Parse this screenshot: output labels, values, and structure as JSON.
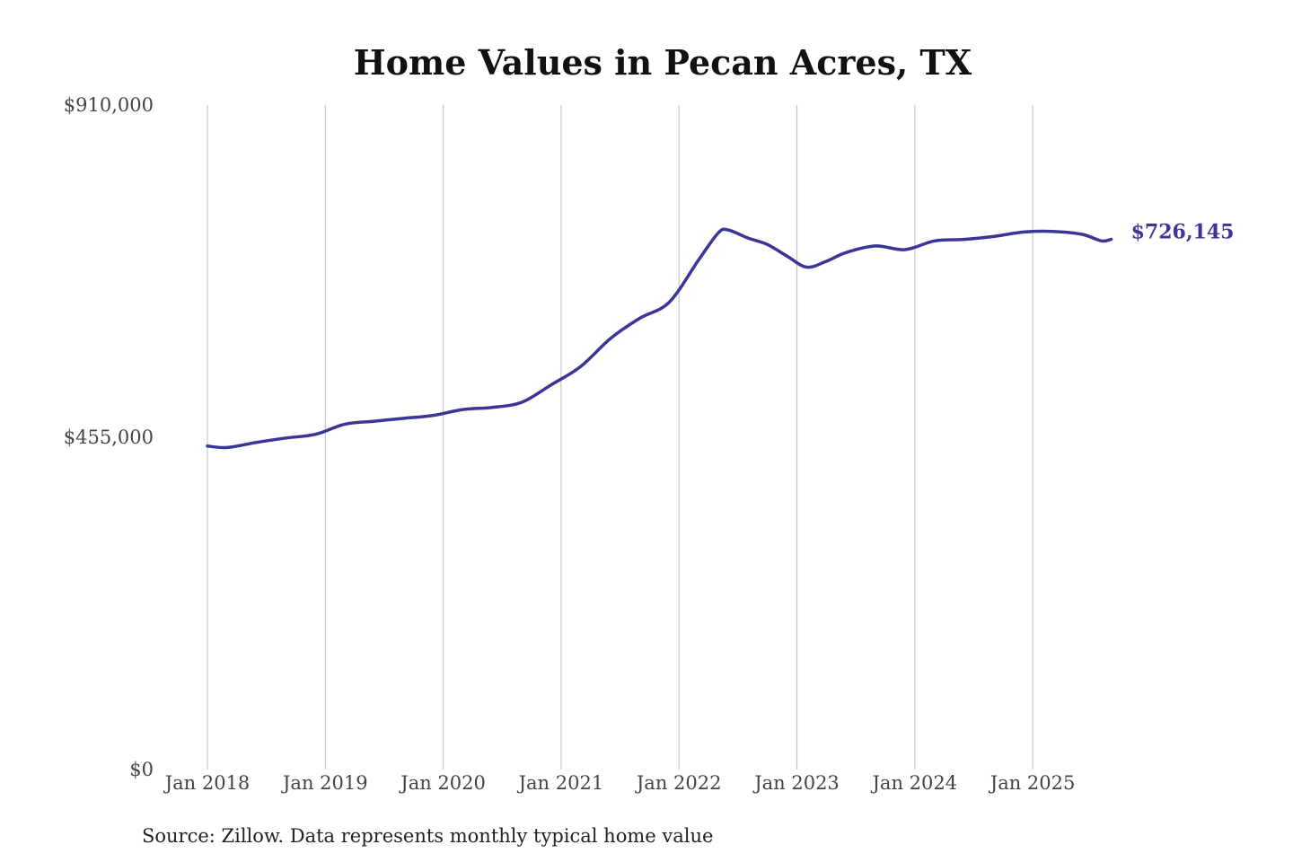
{
  "chart_data": {
    "type": "line",
    "title": "Home Values in Pecan Acres, TX",
    "source_note": "Source: Zillow. Data represents monthly typical home value",
    "xlabel": "",
    "ylabel": "",
    "ylim": [
      0,
      910000
    ],
    "y_ticks": [
      {
        "value": 0,
        "label": "$0"
      },
      {
        "value": 455000,
        "label": "$455,000"
      },
      {
        "value": 910000,
        "label": "$910,000"
      }
    ],
    "x_ticks": [
      {
        "value": "2018-01",
        "label": "Jan 2018"
      },
      {
        "value": "2019-01",
        "label": "Jan 2019"
      },
      {
        "value": "2020-01",
        "label": "Jan 2020"
      },
      {
        "value": "2021-01",
        "label": "Jan 2021"
      },
      {
        "value": "2022-01",
        "label": "Jan 2022"
      },
      {
        "value": "2023-01",
        "label": "Jan 2023"
      },
      {
        "value": "2024-01",
        "label": "Jan 2024"
      },
      {
        "value": "2025-01",
        "label": "Jan 2025"
      }
    ],
    "grid": {
      "vertical": true,
      "horizontal": false
    },
    "line_color": "#3a3596",
    "end_label": "$726,145",
    "series": [
      {
        "x": [
          "2018-01",
          "2018-03",
          "2018-06",
          "2018-09",
          "2018-12",
          "2019-03",
          "2019-06",
          "2019-09",
          "2019-12",
          "2020-03",
          "2020-06",
          "2020-09",
          "2020-12",
          "2021-03",
          "2021-06",
          "2021-09",
          "2021-12",
          "2022-03",
          "2022-05",
          "2022-06",
          "2022-08",
          "2022-10",
          "2022-12",
          "2023-02",
          "2023-04",
          "2023-06",
          "2023-09",
          "2023-12",
          "2024-03",
          "2024-06",
          "2024-09",
          "2024-12",
          "2025-03",
          "2025-06",
          "2025-08",
          "2025-09"
        ],
        "values": [
          443000,
          441000,
          448000,
          454000,
          459000,
          473000,
          477000,
          481000,
          485000,
          493000,
          496000,
          503000,
          527000,
          552000,
          590000,
          618000,
          640000,
          698000,
          735000,
          739000,
          728000,
          719000,
          703000,
          688000,
          696000,
          708000,
          717000,
          712000,
          724000,
          726000,
          730000,
          736000,
          737000,
          733000,
          724000,
          726145
        ]
      }
    ]
  }
}
